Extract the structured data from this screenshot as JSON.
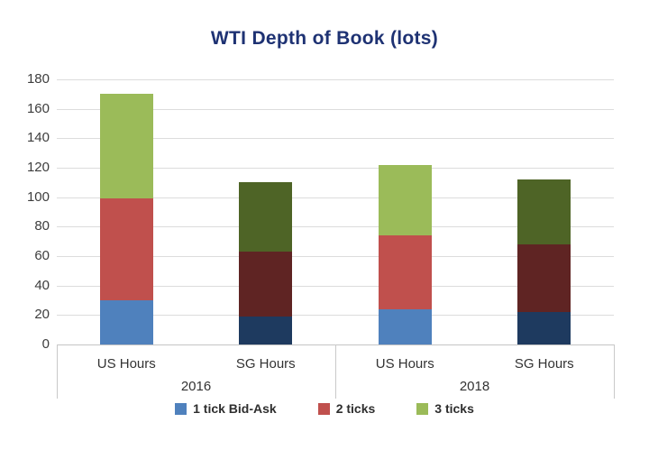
{
  "title": "WTI Depth of Book (lots)",
  "colors": {
    "title": "#1e3273",
    "light_blue": "#4f81bd",
    "light_red": "#c0504d",
    "light_green": "#9bbb59",
    "dark_navy": "#1e3a5f",
    "dark_maroon": "#5f2423",
    "dark_olive": "#4e6426",
    "gridline": "#dcdcdc"
  },
  "chart_data": {
    "type": "bar",
    "stacked": true,
    "title": "WTI Depth of Book (lots)",
    "grid": true,
    "ylim": [
      0,
      180
    ],
    "ytick_step": 20,
    "yticks": [
      0,
      20,
      40,
      60,
      80,
      100,
      120,
      140,
      160,
      180
    ],
    "groups": [
      {
        "label": "2016",
        "categories": [
          "US Hours",
          "SG Hours"
        ]
      },
      {
        "label": "2018",
        "categories": [
          "US Hours",
          "SG Hours"
        ]
      }
    ],
    "categories": [
      "US Hours (2016)",
      "SG Hours (2016)",
      "US Hours (2018)",
      "SG Hours (2018)"
    ],
    "series": [
      {
        "name": "1 tick Bid-Ask",
        "values": [
          30,
          19,
          24,
          22
        ],
        "colors": [
          "#4f81bd",
          "#1e3a5f",
          "#4f81bd",
          "#1e3a5f"
        ]
      },
      {
        "name": "2 ticks",
        "values": [
          69,
          44,
          50,
          46
        ],
        "colors": [
          "#c0504d",
          "#5f2423",
          "#c0504d",
          "#5f2423"
        ]
      },
      {
        "name": "3 ticks",
        "values": [
          71,
          47,
          48,
          44
        ],
        "colors": [
          "#9bbb59",
          "#4e6426",
          "#9bbb59",
          "#4e6426"
        ]
      }
    ],
    "totals": [
      170,
      110,
      122,
      112
    ],
    "legend": [
      {
        "label": "1 tick Bid-Ask",
        "color": "#4f81bd"
      },
      {
        "label": "2 ticks",
        "color": "#c0504d"
      },
      {
        "label": "3 ticks",
        "color": "#9bbb59"
      }
    ],
    "legend_position": "bottom"
  }
}
